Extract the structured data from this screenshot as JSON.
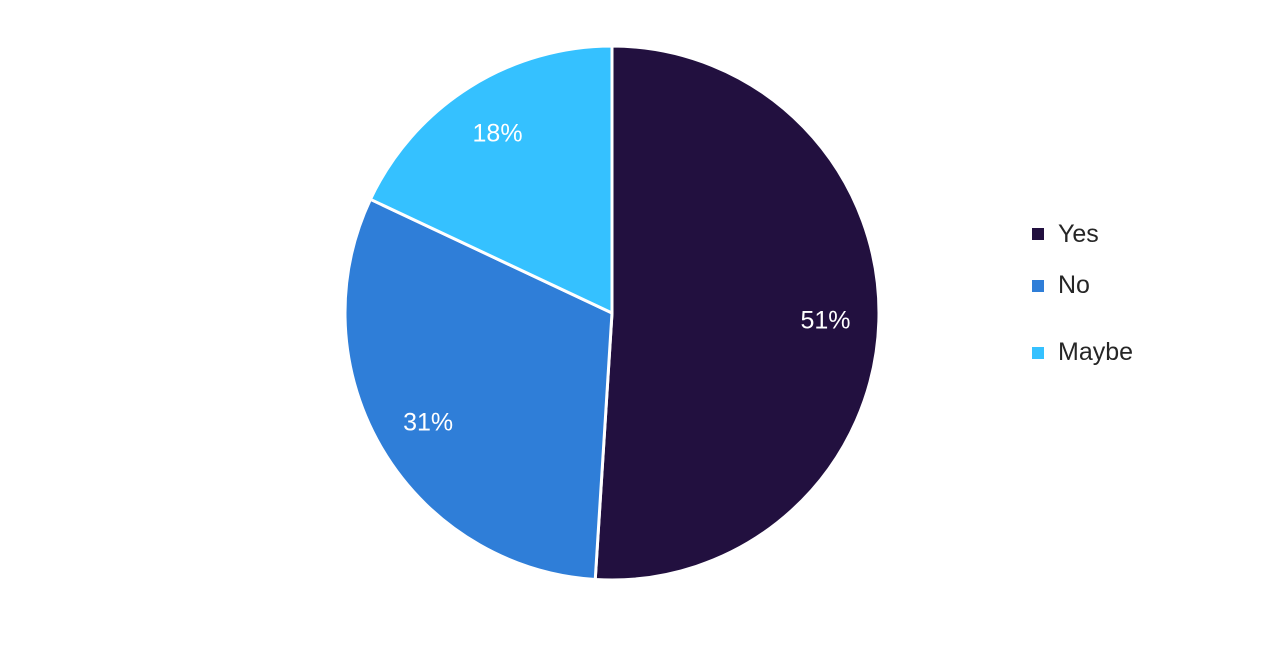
{
  "chart_data": {
    "type": "pie",
    "title": "",
    "start_angle": "12 o'clock, clockwise",
    "categories": [
      "Yes",
      "No",
      "Maybe"
    ],
    "values": [
      51,
      31,
      18
    ],
    "data_labels": [
      "51%",
      "31%",
      "18%"
    ],
    "colors": [
      "#22103f",
      "#2f7ed8",
      "#35c1ff"
    ],
    "legend": {
      "position": "right",
      "entries": [
        "Yes",
        "No",
        "Maybe"
      ]
    }
  }
}
